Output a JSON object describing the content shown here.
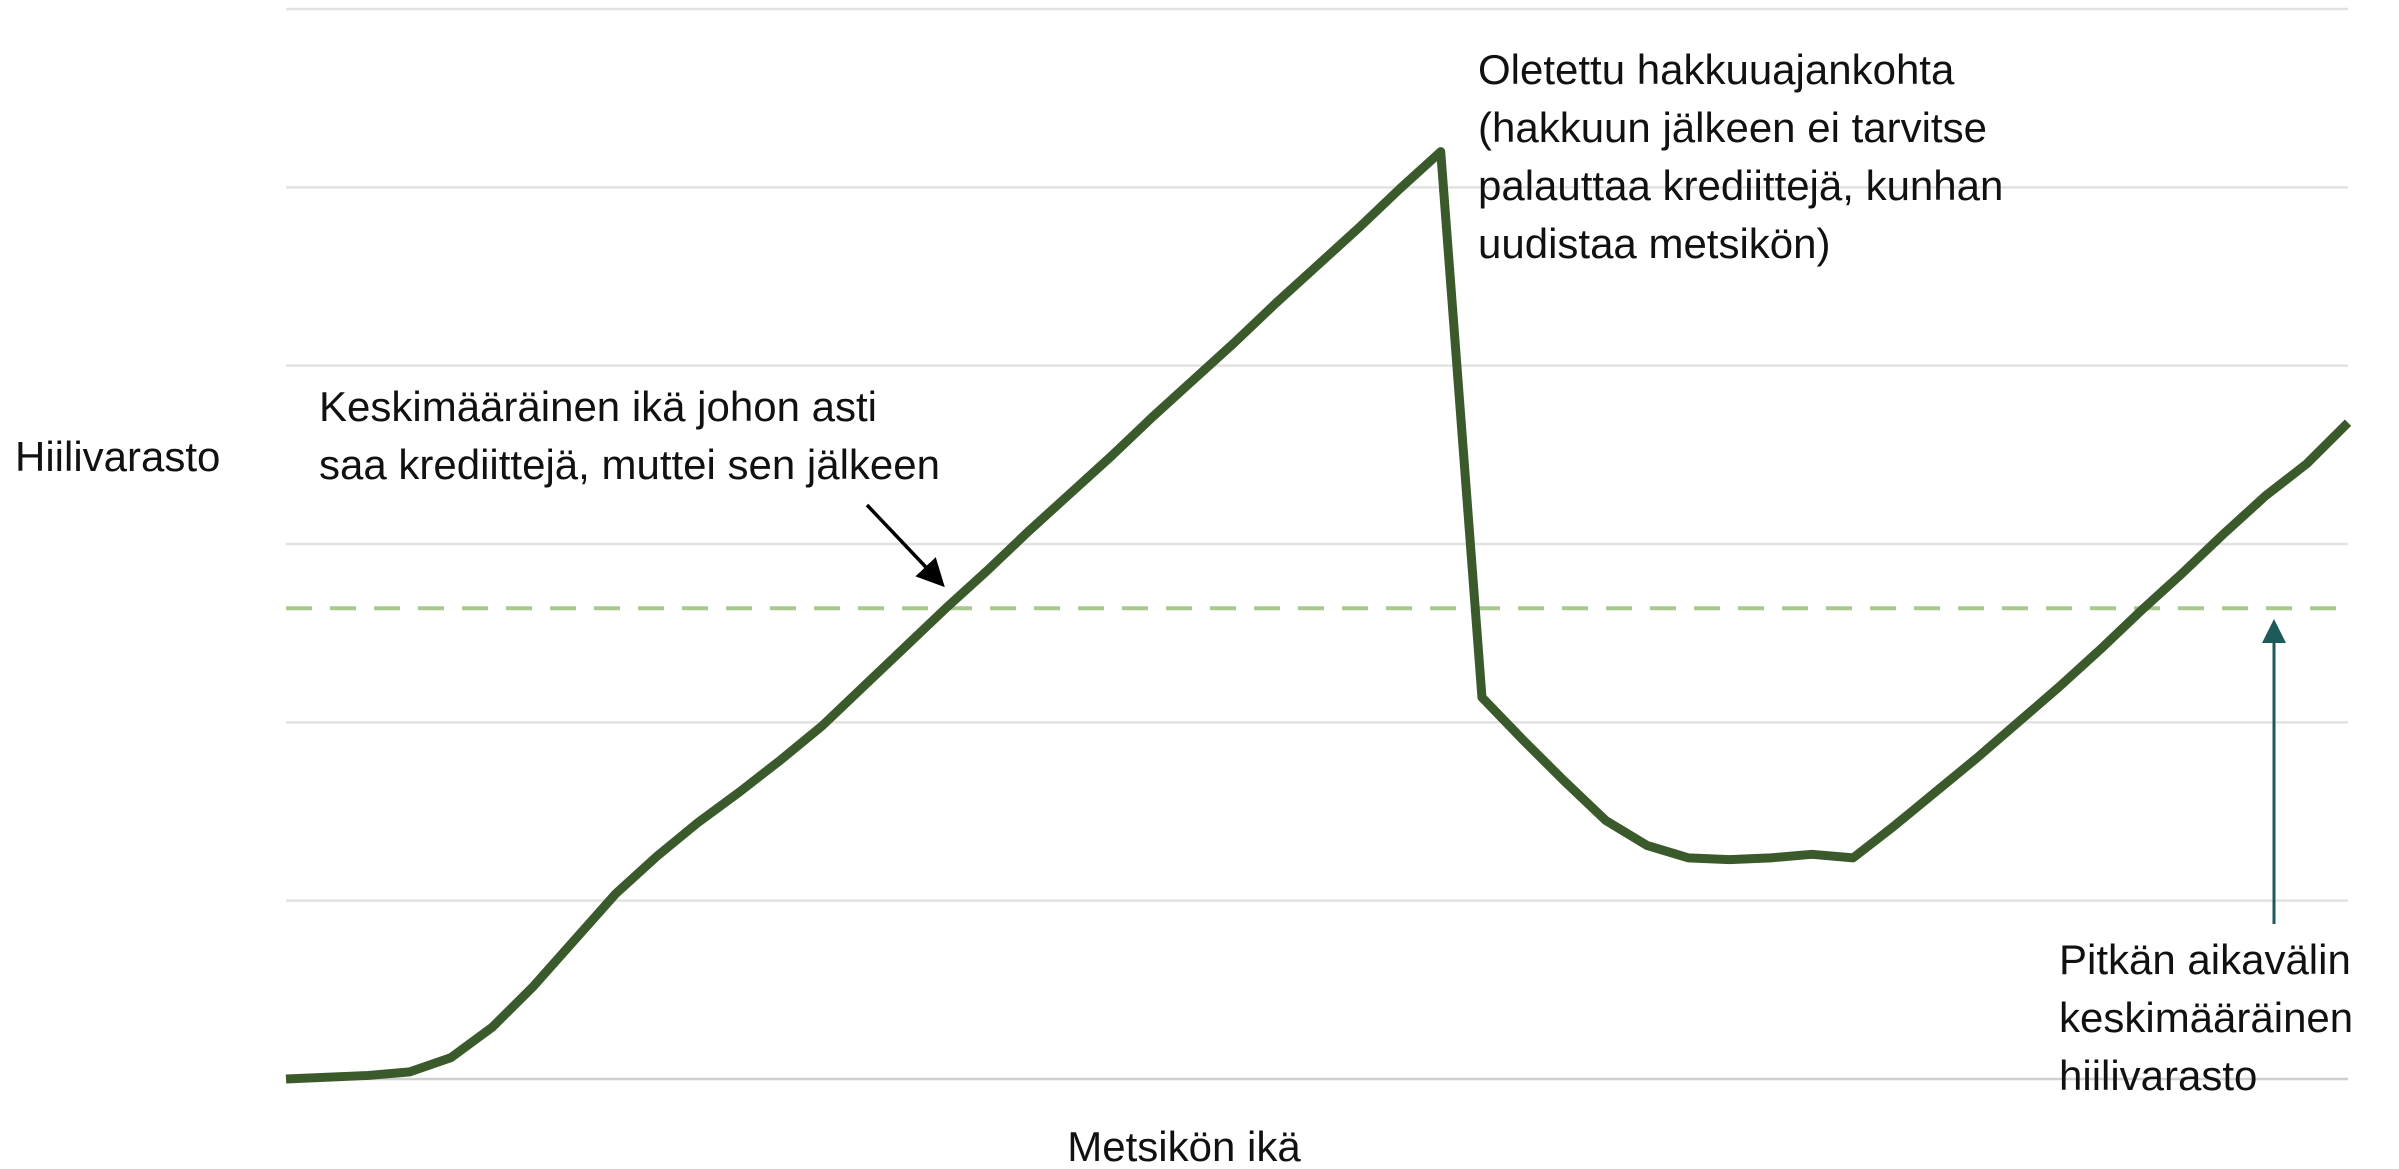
{
  "chart_data": {
    "type": "line",
    "y_label": "Hiilivarasto",
    "x_label": "Metsikön ikä",
    "x": [
      0,
      4,
      6,
      8,
      10,
      12,
      14,
      16,
      18,
      20,
      22,
      24,
      26,
      28,
      30,
      32,
      34,
      36,
      38,
      40,
      42,
      44,
      46,
      48,
      50,
      52,
      54,
      56,
      58,
      60,
      62,
      64,
      66,
      68,
      70,
      72,
      74,
      76,
      78,
      80,
      82,
      84,
      86,
      88,
      90,
      92,
      94,
      96,
      98,
      100
    ],
    "series": [
      {
        "color": "#3b5a2b",
        "values": [
          0,
          0.02,
          0.04,
          0.12,
          0.29,
          0.52,
          0.78,
          1.04,
          1.25,
          1.44,
          1.61,
          1.79,
          1.98,
          2.2,
          2.42,
          2.64,
          2.85,
          3.07,
          3.28,
          3.49,
          3.71,
          3.92,
          4.13,
          4.35,
          4.56,
          4.77,
          4.99,
          5.2,
          2.14,
          1.9,
          1.67,
          1.45,
          1.31,
          1.24,
          1.23,
          1.24,
          1.26,
          1.24,
          1.42,
          1.61,
          1.8,
          2.0,
          2.2,
          2.41,
          2.63,
          2.84,
          3.06,
          3.27,
          3.45,
          3.68
        ]
      }
    ],
    "reference_line": {
      "value": 2.64,
      "color": "#a8c98e"
    },
    "xlim": [
      0,
      100
    ],
    "ylim": [
      0,
      6
    ],
    "yticks": [
      0,
      1,
      2,
      3,
      4,
      5,
      6
    ],
    "grid": true,
    "annotations": [
      [
        "Oletettu hakkuuajankohta",
        "(hakkuun jälkeen ei tarvitse",
        "palauttaa krediittejä, kunhan",
        "uudistaa metsikön)"
      ],
      [
        "Keskimääräinen ikä johon asti",
        "saa krediittejä, muttei sen jälkeen"
      ],
      [
        "Pitkän aikavälin",
        "keskimääräinen",
        "hiilivarasto"
      ]
    ]
  }
}
